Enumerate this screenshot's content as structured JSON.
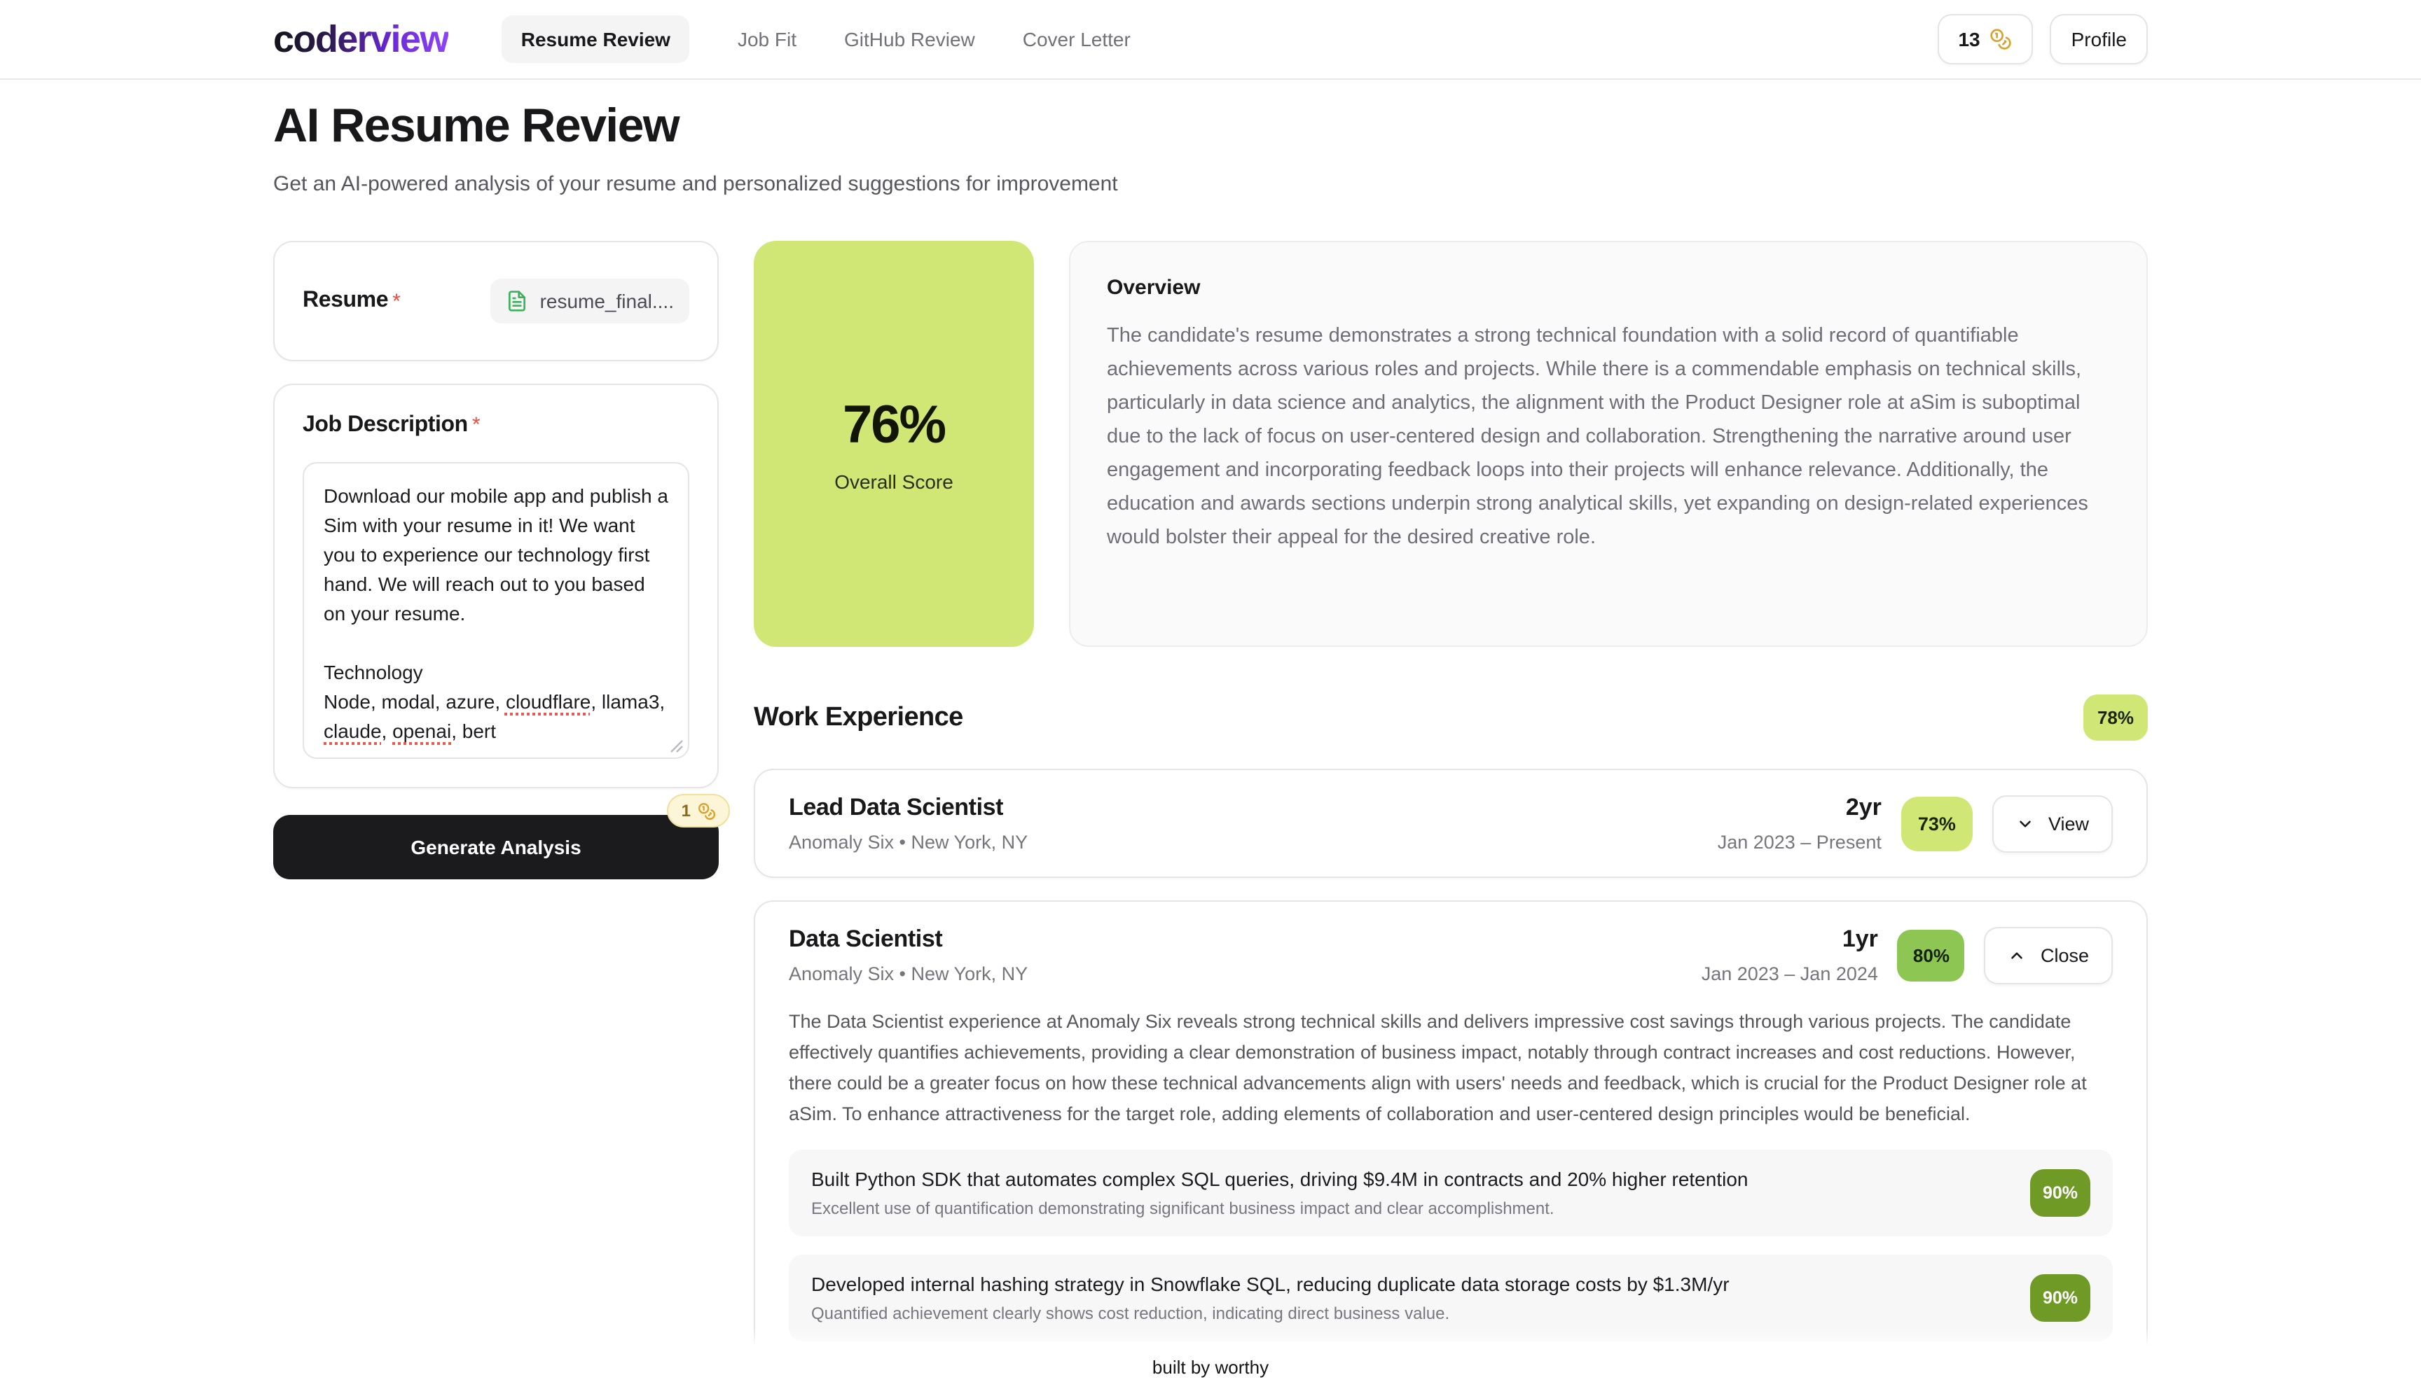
{
  "header": {
    "logo": "coderview",
    "nav": [
      {
        "label": "Resume Review",
        "active": true
      },
      {
        "label": "Job Fit",
        "active": false
      },
      {
        "label": "GitHub Review",
        "active": false
      },
      {
        "label": "Cover Letter",
        "active": false
      }
    ],
    "credits": "13",
    "profile_label": "Profile"
  },
  "page": {
    "title": "AI Resume Review",
    "subtitle": "Get an AI-powered analysis of your resume and personalized suggestions for improvement"
  },
  "form": {
    "resume_label": "Resume",
    "required_mark": "*",
    "resume_file": "resume_final....",
    "job_description_label": "Job Description",
    "job_description": {
      "paragraph": "Download our mobile app and publish a Sim with your resume in it! We want you to experience our technology first hand. We will reach out to you based on your resume.",
      "tech_title": "Technology",
      "tech_segments": [
        {
          "text": "Node, modal, azure, ",
          "misspelled": false
        },
        {
          "text": "cloudflare",
          "misspelled": true
        },
        {
          "text": ", llama3, ",
          "misspelled": false
        },
        {
          "text": "claude",
          "misspelled": true
        },
        {
          "text": ", ",
          "misspelled": false
        },
        {
          "text": "openai",
          "misspelled": true
        },
        {
          "text": ", bert",
          "misspelled": false
        }
      ]
    },
    "generate_label": "Generate Analysis",
    "generate_cost": "1"
  },
  "score": {
    "value": "76%",
    "label": "Overall Score"
  },
  "overview": {
    "title": "Overview",
    "body": "The candidate's resume demonstrates a strong technical foundation with a solid record of quantifiable achievements across various roles and projects. While there is a commendable emphasis on technical skills, particularly in data science and analytics, the alignment with the Product Designer role at aSim is suboptimal due to the lack of focus on user-centered design and collaboration. Strengthening the narrative around user engagement and incorporating feedback loops into their projects will enhance relevance. Additionally, the education and awards sections underpin strong analytical skills, yet expanding on design-related experiences would bolster their appeal for the desired creative role."
  },
  "work": {
    "section_title": "Work Experience",
    "section_score": "78%",
    "jobs": [
      {
        "title": "Lead Data Scientist",
        "company": "Anomaly Six • New York, NY",
        "duration": "2yr",
        "dates": "Jan 2023 – Present",
        "score": "73%",
        "action_label": "View"
      },
      {
        "title": "Data Scientist",
        "company": "Anomaly Six • New York, NY",
        "duration": "1yr",
        "dates": "Jan 2023 – Jan 2024",
        "score": "80%",
        "action_label": "Close",
        "summary": "The Data Scientist experience at Anomaly Six reveals strong technical skills and delivers impressive cost savings through various projects. The candidate effectively quantifies achievements, providing a clear demonstration of business impact, notably through contract increases and cost reductions. However, there could be a greater focus on how these technical advancements align with users' needs and feedback, which is crucial for the Product Designer role at aSim. To enhance attractiveness for the target role, adding elements of collaboration and user-centered design principles would be beneficial.",
        "bullets": [
          {
            "text": "Built Python SDK that automates complex SQL queries, driving $9.4M in contracts and 20% higher retention",
            "note": "Excellent use of quantification demonstrating significant business impact and clear accomplishment.",
            "score": "90%"
          },
          {
            "text": "Developed internal hashing strategy in Snowflake SQL, reducing duplicate data storage costs by $1.3M/yr",
            "note": "Quantified achievement clearly shows cost reduction, indicating direct business value.",
            "score": "90%"
          }
        ]
      }
    ]
  },
  "footer": {
    "text": "built by worthy"
  },
  "icons": {
    "credits_icon": "coins-icon",
    "resume_file_icon": "file-text-icon",
    "view_icon": "chevron-down-icon",
    "close_icon": "chevron-up-icon",
    "resize_icon": "resize-handle-icon"
  },
  "colors": {
    "brand_gradient_start": "#141418",
    "brand_gradient_end": "#8b45f5",
    "score_lime": "#d1e775",
    "score_green": "#8dc653",
    "score_dark_green": "#6f9a26",
    "coin_gold": "#d9a32b",
    "cost_badge_bg": "#fcf5d8",
    "required_red": "#ef4c44",
    "spellcheck_red": "#e8594f"
  }
}
